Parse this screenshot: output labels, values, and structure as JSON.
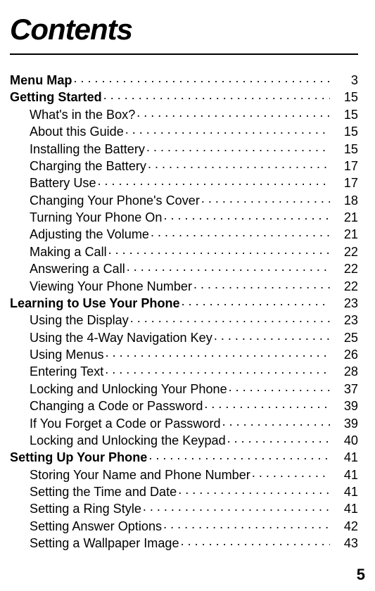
{
  "title": "Contents",
  "footer_page": "5",
  "colors": {
    "text": "#000000",
    "background": "#ffffff",
    "rule": "#000000"
  },
  "typography": {
    "title_fontsize_pt": 31,
    "title_style": "italic",
    "title_weight": 900,
    "body_fontsize_pt": 13.5,
    "body_family": "Arial"
  },
  "toc": [
    {
      "level": 0,
      "label": "Menu Map",
      "page": "3"
    },
    {
      "level": 0,
      "label": "Getting Started",
      "page": "15"
    },
    {
      "level": 1,
      "label": "What's in the Box?",
      "page": "15"
    },
    {
      "level": 1,
      "label": "About this Guide",
      "page": "15"
    },
    {
      "level": 1,
      "label": "Installing the Battery",
      "page": "15"
    },
    {
      "level": 1,
      "label": "Charging the Battery",
      "page": "17"
    },
    {
      "level": 1,
      "label": "Battery Use",
      "page": "17"
    },
    {
      "level": 1,
      "label": "Changing Your Phone's Cover",
      "page": "18"
    },
    {
      "level": 1,
      "label": "Turning Your Phone On",
      "page": "21"
    },
    {
      "level": 1,
      "label": "Adjusting the Volume",
      "page": "21"
    },
    {
      "level": 1,
      "label": "Making a Call",
      "page": "22"
    },
    {
      "level": 1,
      "label": "Answering a Call",
      "page": "22"
    },
    {
      "level": 1,
      "label": "Viewing Your Phone Number",
      "page": "22"
    },
    {
      "level": 0,
      "label": "Learning to Use Your Phone",
      "page": "23"
    },
    {
      "level": 1,
      "label": "Using the Display",
      "page": "23"
    },
    {
      "level": 1,
      "label": "Using the 4-Way Navigation Key",
      "page": "25"
    },
    {
      "level": 1,
      "label": "Using Menus",
      "page": "26"
    },
    {
      "level": 1,
      "label": "Entering Text",
      "page": "28"
    },
    {
      "level": 1,
      "label": "Locking and Unlocking Your Phone",
      "page": "37"
    },
    {
      "level": 1,
      "label": "Changing a Code or Password",
      "page": "39"
    },
    {
      "level": 1,
      "label": "If You Forget a Code or Password",
      "page": "39"
    },
    {
      "level": 1,
      "label": "Locking and Unlocking the Keypad",
      "page": "40"
    },
    {
      "level": 0,
      "label": "Setting Up Your Phone",
      "page": "41"
    },
    {
      "level": 1,
      "label": "Storing Your Name and Phone Number",
      "page": "41"
    },
    {
      "level": 1,
      "label": "Setting the Time and Date",
      "page": "41"
    },
    {
      "level": 1,
      "label": "Setting a Ring Style",
      "page": "41"
    },
    {
      "level": 1,
      "label": "Setting Answer Options",
      "page": "42"
    },
    {
      "level": 1,
      "label": "Setting a Wallpaper Image",
      "page": "43"
    }
  ]
}
